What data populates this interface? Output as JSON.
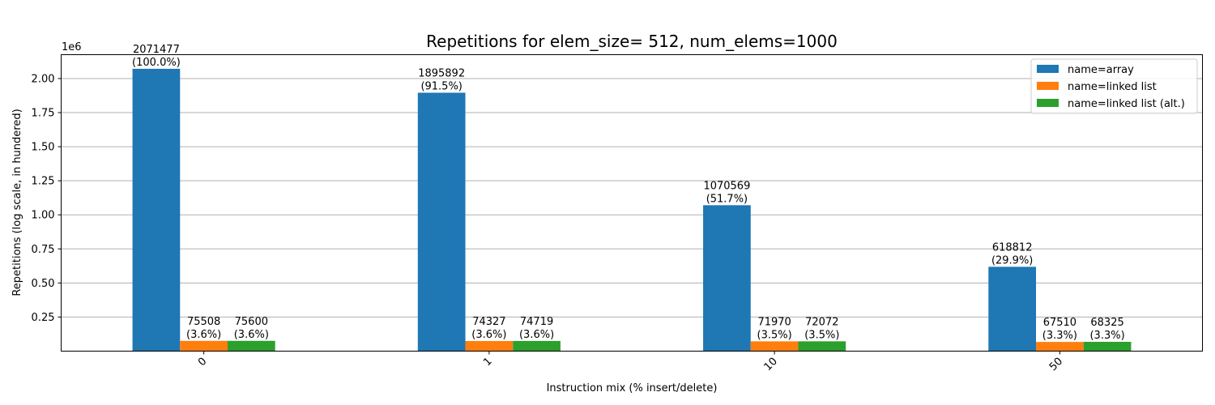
{
  "chart_data": {
    "type": "bar",
    "title": "Repetitions for elem_size= 512, num_elems=1000",
    "xlabel": "Instruction mix (% insert/delete)",
    "ylabel": "Repetitions (log scale, in hundered)",
    "y_offset_label": "1e6",
    "categories": [
      "0",
      "1",
      "10",
      "50"
    ],
    "ylim": [
      0,
      2175000
    ],
    "yticks": [
      250000,
      500000,
      750000,
      1000000,
      1250000,
      1500000,
      1750000,
      2000000
    ],
    "ytick_labels": [
      "0.25",
      "0.50",
      "0.75",
      "1.00",
      "1.25",
      "1.50",
      "1.75",
      "2.00"
    ],
    "grid": "horizontal",
    "legend_position": "top-right",
    "series": [
      {
        "name": "name=array",
        "color": "#1f77b4",
        "values": [
          2071477,
          1895892,
          1070569,
          618812
        ],
        "labels": [
          [
            "2071477",
            "(100.0%)"
          ],
          [
            "1895892",
            "(91.5%)"
          ],
          [
            "1070569",
            "(51.7%)"
          ],
          [
            "618812",
            "(29.9%)"
          ]
        ]
      },
      {
        "name": "name=linked list",
        "color": "#ff7f0e",
        "values": [
          75508,
          74327,
          71970,
          67510
        ],
        "labels": [
          [
            "75508",
            "(3.6%)"
          ],
          [
            "74327",
            "(3.6%)"
          ],
          [
            "71970",
            "(3.5%)"
          ],
          [
            "67510",
            "(3.3%)"
          ]
        ]
      },
      {
        "name": "name=linked list (alt.)",
        "color": "#2ca02c",
        "values": [
          75600,
          74719,
          72072,
          68325
        ],
        "labels": [
          [
            "75600",
            "(3.6%)"
          ],
          [
            "74719",
            "(3.6%)"
          ],
          [
            "72072",
            "(3.5%)"
          ],
          [
            "68325",
            "(3.3%)"
          ]
        ]
      }
    ]
  }
}
